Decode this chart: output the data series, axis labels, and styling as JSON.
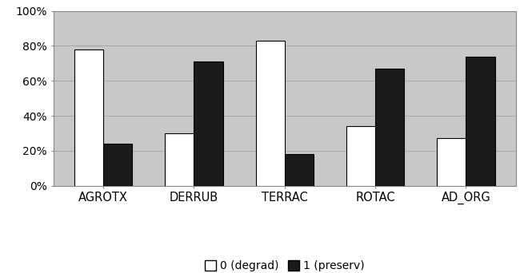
{
  "categories": [
    "AGROTX",
    "DERRUB",
    "TERRAC",
    "ROTAC",
    "AD_ORG"
  ],
  "degrad_values": [
    0.78,
    0.3,
    0.83,
    0.34,
    0.27
  ],
  "preserv_values": [
    0.24,
    0.71,
    0.18,
    0.67,
    0.74
  ],
  "degrad_color": "#ffffff",
  "preserv_color": "#1a1a1a",
  "bar_edge_color": "#000000",
  "plot_area_color": "#c8c8c8",
  "fig_background_color": "#ffffff",
  "ylim": [
    0,
    1.0
  ],
  "yticks": [
    0,
    0.2,
    0.4,
    0.6,
    0.8,
    1.0
  ],
  "ytick_labels": [
    "0%",
    "20%",
    "40%",
    "60%",
    "80%",
    "100%"
  ],
  "legend_label_degrad": "0 (degrad)",
  "legend_label_preserv": "1 (preserv)",
  "bar_width": 0.32,
  "grid_color": "#aaaaaa",
  "tick_fontsize": 10,
  "label_fontsize": 10.5
}
